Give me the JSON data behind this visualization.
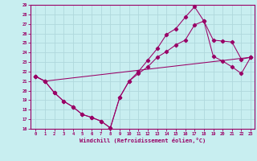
{
  "xlabel": "Windchill (Refroidissement éolien,°C)",
  "bg_color": "#c8eef0",
  "grid_color": "#b0d8dc",
  "line_color": "#990066",
  "xlim_min": -0.5,
  "xlim_max": 23.4,
  "ylim_min": 16,
  "ylim_max": 29,
  "xticks": [
    0,
    1,
    2,
    3,
    4,
    5,
    6,
    7,
    8,
    9,
    10,
    11,
    12,
    13,
    14,
    15,
    16,
    17,
    18,
    19,
    20,
    21,
    22,
    23
  ],
  "yticks": [
    16,
    17,
    18,
    19,
    20,
    21,
    22,
    23,
    24,
    25,
    26,
    27,
    28,
    29
  ],
  "line1_x": [
    0,
    1,
    2,
    3,
    4,
    5,
    6,
    7,
    8,
    9,
    10,
    11,
    12,
    13,
    14,
    15,
    16,
    17,
    18,
    19,
    20,
    21,
    22,
    23
  ],
  "line1_y": [
    21.5,
    21.0,
    19.8,
    18.9,
    18.3,
    17.5,
    17.2,
    16.8,
    16.1,
    19.3,
    21.0,
    21.8,
    22.5,
    23.5,
    24.1,
    24.8,
    25.3,
    26.9,
    27.3,
    25.3,
    25.2,
    25.1,
    23.3,
    23.5
  ],
  "line2_x": [
    0,
    1,
    2,
    3,
    4,
    5,
    6,
    7,
    8,
    9,
    10,
    11,
    12,
    13,
    14,
    15,
    16,
    17,
    18,
    19,
    20,
    21,
    22,
    23
  ],
  "line2_y": [
    21.5,
    21.0,
    19.8,
    18.9,
    18.3,
    17.5,
    17.2,
    16.8,
    16.1,
    19.3,
    21.0,
    22.0,
    23.2,
    24.4,
    25.9,
    26.5,
    27.7,
    28.8,
    27.3,
    23.6,
    23.1,
    22.5,
    21.8,
    23.5
  ],
  "line3_x": [
    0,
    1,
    23
  ],
  "line3_y": [
    21.5,
    21.0,
    23.5
  ]
}
